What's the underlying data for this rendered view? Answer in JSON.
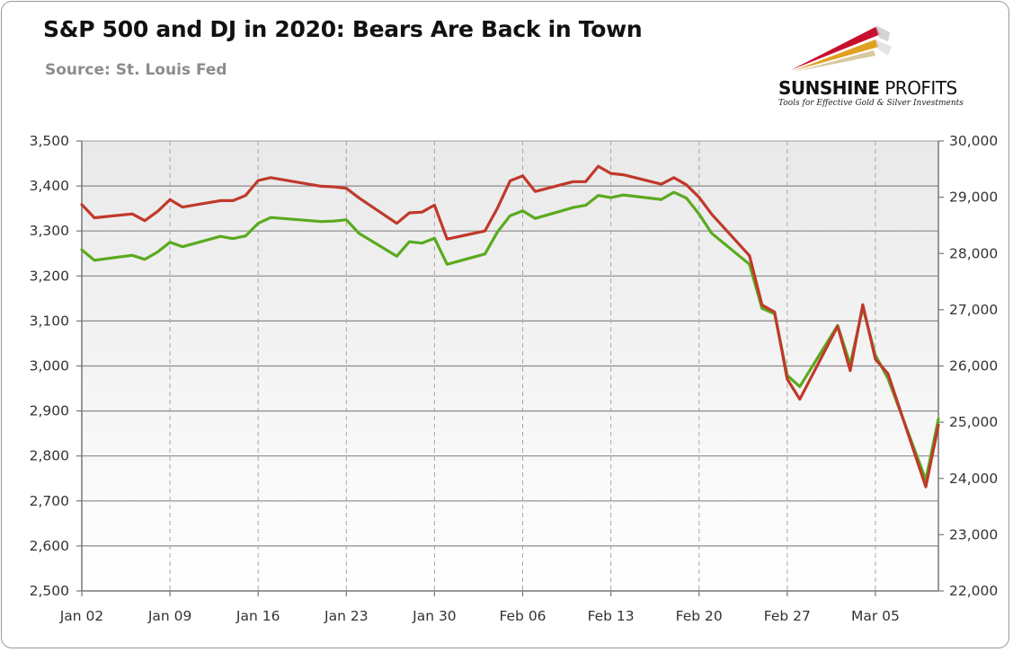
{
  "header": {
    "title": "S&P 500 and DJ in 2020: Bears Are Back in Town",
    "source": "Source: St. Louis Fed"
  },
  "logo": {
    "name_bold": "SUNSHINE",
    "name_light": " PROFITS",
    "tagline": "Tools for Effective Gold & Silver Investments",
    "colors": {
      "red": "#c8102e",
      "gold": "#e0a020",
      "silver": "#c8c8c8"
    }
  },
  "chart_data": {
    "type": "line",
    "title": "S&P 500 and DJ in 2020: Bears Are Back in Town",
    "grid": true,
    "legend": "none",
    "x_tick_labels": [
      "Jan 02",
      "Jan 09",
      "Jan 16",
      "Jan 23",
      "Jan 30",
      "Feb 06",
      "Feb 13",
      "Feb 20",
      "Feb 27",
      "Mar 05"
    ],
    "x_tick_days": [
      2,
      9,
      16,
      23,
      30,
      37,
      44,
      51,
      58,
      65
    ],
    "x_range": [
      2,
      70
    ],
    "y_left_ticks": [
      "2,500",
      "2,600",
      "2,700",
      "2,800",
      "2,900",
      "3,000",
      "3,100",
      "3,200",
      "3,300",
      "3,400",
      "3,500"
    ],
    "y_left_range": [
      2500,
      3500
    ],
    "y_right_ticks": [
      "22,000",
      "23,000",
      "24,000",
      "25,000",
      "26,000",
      "27,000",
      "28,000",
      "29,000",
      "30,000"
    ],
    "y_right_range": [
      22000,
      30000
    ],
    "x_note": "x values are 2020 calendar days counted from Jan 01 (Jan 02 = 2, Feb 06 = 37, Mar 10 = 70)",
    "series": [
      {
        "axis": "left",
        "color": "#5aaa1e",
        "x": [
          2,
          3,
          6,
          7,
          8,
          9,
          10,
          13,
          14,
          15,
          16,
          17,
          21,
          22,
          23,
          24,
          27,
          28,
          29,
          30,
          31,
          34,
          35,
          36,
          37,
          38,
          41,
          42,
          43,
          44,
          45,
          48,
          49,
          50,
          51,
          52,
          55,
          56,
          57,
          58,
          59,
          62,
          63,
          64,
          65,
          66,
          69,
          70
        ],
        "y": [
          3258,
          3235,
          3246,
          3237,
          3253,
          3275,
          3265,
          3288,
          3283,
          3289,
          3317,
          3330,
          3321,
          3322,
          3325,
          3295,
          3244,
          3276,
          3273,
          3284,
          3226,
          3249,
          3298,
          3334,
          3345,
          3328,
          3352,
          3357,
          3379,
          3374,
          3380,
          3370,
          3386,
          3373,
          3338,
          3295,
          3226,
          3128,
          3116,
          2979,
          2954,
          3090,
          3003,
          3130,
          3024,
          2972,
          2747,
          2882
        ]
      },
      {
        "axis": "right",
        "color": "#c0392b",
        "x": [
          2,
          3,
          6,
          7,
          8,
          9,
          10,
          13,
          14,
          15,
          16,
          17,
          21,
          22,
          23,
          24,
          27,
          28,
          29,
          30,
          31,
          34,
          35,
          36,
          37,
          38,
          41,
          42,
          43,
          44,
          45,
          48,
          49,
          50,
          51,
          52,
          55,
          56,
          57,
          58,
          59,
          62,
          63,
          64,
          65,
          66,
          69,
          70
        ],
        "y": [
          28869,
          28635,
          28704,
          28584,
          28745,
          28957,
          28824,
          28939,
          28940,
          29031,
          29298,
          29348,
          29196,
          29186,
          29160,
          28990,
          28536,
          28723,
          28735,
          28860,
          28256,
          28400,
          28808,
          29291,
          29380,
          29103,
          29277,
          29276,
          29552,
          29424,
          29399,
          29232,
          29348,
          29220,
          29000,
          28700,
          27961,
          27082,
          26958,
          25767,
          25409,
          26706,
          25917,
          27091,
          26122,
          25865,
          23851,
          24950
        ]
      }
    ]
  }
}
